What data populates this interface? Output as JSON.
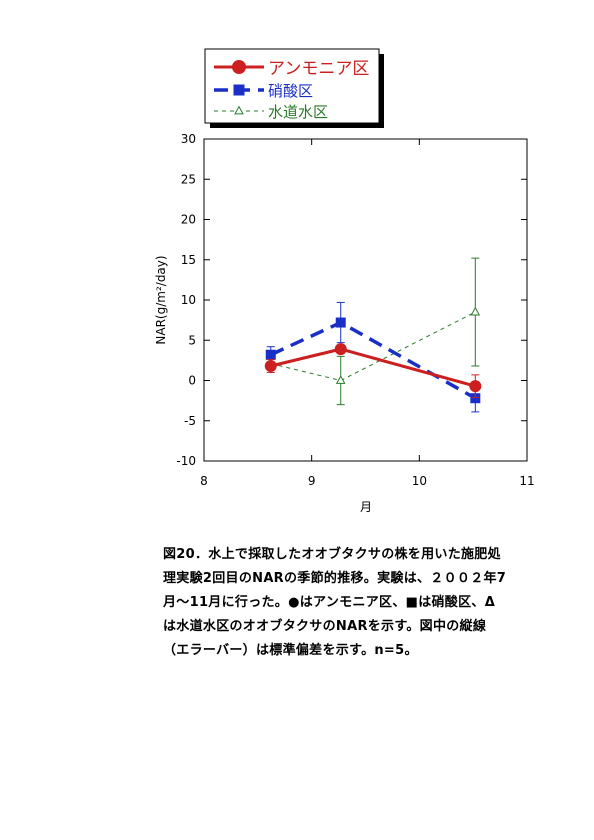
{
  "chart_data": {
    "type": "line",
    "xlabel": "月",
    "ylabel": "NAR(g/m²/day)",
    "xlim": [
      8,
      11
    ],
    "ylim": [
      -10,
      30
    ],
    "xticks": [
      "8",
      "9",
      "10",
      "11"
    ],
    "yticks": [
      "30",
      "25",
      "20",
      "15",
      "10",
      "5",
      "0",
      "-5",
      "-10"
    ],
    "grid": false,
    "legend_position": "top",
    "series": [
      {
        "name": "アンモニア区",
        "color": "#cc1f1f",
        "style": "solid",
        "marker": "circle",
        "x": [
          8.62,
          9.27,
          10.52
        ],
        "y": [
          1.8,
          3.9,
          -0.7
        ],
        "err": [
          0.8,
          0.0,
          1.4
        ]
      },
      {
        "name": "硝酸区",
        "color": "#1a2fc8",
        "style": "dashed",
        "marker": "square",
        "x": [
          8.62,
          9.27,
          10.52
        ],
        "y": [
          3.2,
          7.2,
          -2.2
        ],
        "err": [
          1.0,
          2.5,
          1.7
        ]
      },
      {
        "name": "水道水区",
        "color": "#2a7a2a",
        "style": "dotted",
        "marker": "triangle",
        "x": [
          8.62,
          9.27,
          10.52
        ],
        "y": [
          2.1,
          0.0,
          8.5
        ],
        "err": [
          0.0,
          3.0,
          6.7
        ]
      }
    ]
  },
  "caption": {
    "lines": [
      "図20．水上で採取したオオブタクサの株を用いた施肥処",
      "理実験2回目のNARの季節的推移。実験は、２００２年7",
      "月～11月に行った。●はアンモニア区、■は硝酸区、Δ",
      "は水道水区のオオブタクサのNARを示す。図中の縦線",
      "（エラーバー）は標準偏差を示す。n=5。"
    ]
  }
}
